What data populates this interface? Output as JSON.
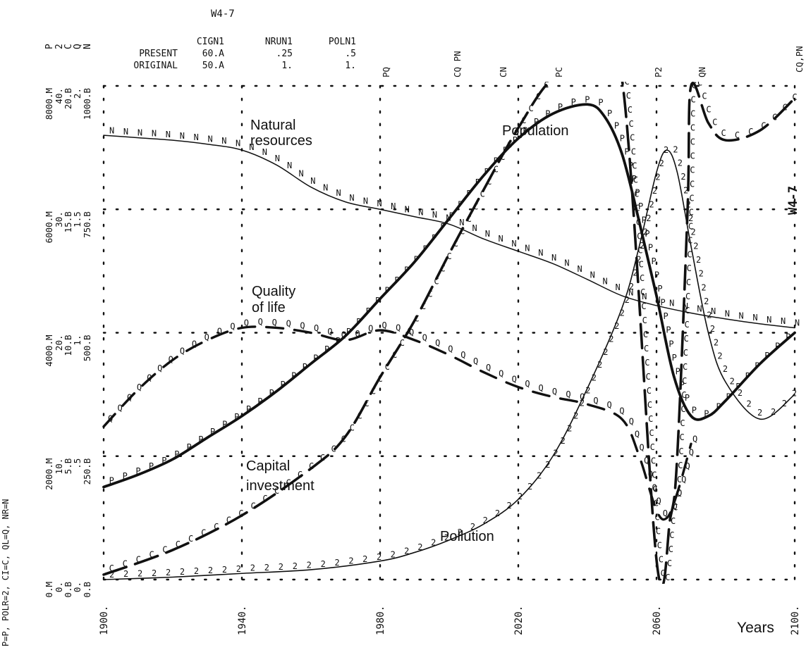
{
  "chart_data": {
    "type": "line",
    "page_code": "W4-7",
    "margin_code": "W4-7",
    "x_unit_label": "Years",
    "x_ticks": [
      "1900.",
      "1940.",
      "1980.",
      "2020.",
      "2060.",
      "2100."
    ],
    "x_range": [
      1900,
      2100
    ],
    "grid": true,
    "parameters": {
      "headers": [
        "CIGN1",
        "NRUN1",
        "POLN1"
      ],
      "rows": [
        {
          "label": "PRESENT",
          "values": [
            "60.A",
            ".25",
            ".5"
          ]
        },
        {
          "label": "ORIGINAL",
          "values": [
            "50.A",
            "1.",
            "1."
          ]
        }
      ]
    },
    "y_scales": [
      {
        "id": "P",
        "ticks": [
          "0.M",
          "2000.M",
          "4000.M",
          "6000.M",
          "8000.M"
        ]
      },
      {
        "id": "2",
        "ticks": [
          "0.",
          "10.",
          "20.",
          "30.",
          "40."
        ]
      },
      {
        "id": "C",
        "ticks": [
          "0.B",
          "5.B",
          "10.B",
          "15.B",
          "20.B"
        ]
      },
      {
        "id": "Q",
        "ticks": [
          "0.",
          ".5",
          "1.",
          "1.5",
          "2."
        ]
      },
      {
        "id": "N",
        "ticks": [
          "0.B",
          "250.B",
          "500.B",
          "750.B",
          "1000.B"
        ]
      }
    ],
    "scale_letters": [
      "P",
      "2",
      "C",
      "Q",
      "N"
    ],
    "left_legend": "P=P, POLR=2, CI=C, QL=Q, NR=N",
    "overlap_notes": [
      "PQ",
      "CQ PN",
      "CN",
      "PC",
      "P2",
      "QN",
      "CQ,PN"
    ],
    "annotations": [
      "Natural resources",
      "Population",
      "Quality of life",
      "Capital investment",
      "Pollution"
    ],
    "series": [
      {
        "name": "Natural resources",
        "symbol": "N",
        "scale": "N",
        "x": [
          1900,
          1910,
          1920,
          1930,
          1940,
          1950,
          1960,
          1970,
          1980,
          1990,
          2000,
          2010,
          2020,
          2030,
          2040,
          2050,
          2060,
          2070,
          2080,
          2090,
          2100
        ],
        "y": [
          900,
          895,
          890,
          882,
          870,
          840,
          795,
          765,
          750,
          735,
          720,
          690,
          665,
          640,
          608,
          575,
          555,
          540,
          528,
          518,
          510
        ]
      },
      {
        "name": "Population",
        "symbol": "P",
        "scale": "P",
        "x": [
          1900,
          1910,
          1920,
          1930,
          1940,
          1950,
          1960,
          1970,
          1980,
          1990,
          2000,
          2010,
          2020,
          2030,
          2040,
          2045,
          2050,
          2055,
          2060,
          2065,
          2070,
          2075,
          2080,
          2090,
          2100
        ],
        "y": [
          1500,
          1700,
          1950,
          2300,
          2650,
          3050,
          3500,
          3950,
          4550,
          5150,
          5850,
          6550,
          7150,
          7550,
          7700,
          7500,
          6900,
          5800,
          4600,
          3300,
          2650,
          2650,
          2900,
          3500,
          4000
        ]
      },
      {
        "name": "Pollution",
        "symbol": "2",
        "scale": "2",
        "x": [
          1900,
          1920,
          1940,
          1960,
          1980,
          1990,
          2000,
          2010,
          2020,
          2030,
          2040,
          2050,
          2055,
          2060,
          2063,
          2066,
          2070,
          2075,
          2080,
          2090,
          2100
        ],
        "y": [
          0,
          0.2,
          0.5,
          0.8,
          1.5,
          2.2,
          3.2,
          4.5,
          6.5,
          10,
          15.5,
          22,
          27,
          33,
          34.8,
          33,
          27,
          20,
          16,
          13,
          15
        ]
      },
      {
        "name": "Capital investment",
        "symbol": "C",
        "scale": "C",
        "x": [
          1900,
          1920,
          1940,
          1960,
          1970,
          1980,
          1990,
          2000,
          2010,
          2020,
          2030,
          2040,
          2050,
          2060,
          2064,
          2066,
          2069,
          2070,
          2075,
          2080,
          2090,
          2100
        ],
        "y": [
          0.2,
          1.2,
          2.6,
          4.5,
          5.8,
          8.2,
          10.5,
          13.2,
          15.8,
          18.3,
          21.5,
          25,
          28,
          0.8,
          2.5,
          5,
          15,
          20,
          18.5,
          17.8,
          18.2,
          19.5
        ]
      },
      {
        "name": "Quality of life",
        "symbol": "Q",
        "scale": "Q",
        "x": [
          1900,
          1910,
          1920,
          1930,
          1940,
          1950,
          1960,
          1970,
          1980,
          1990,
          2000,
          2010,
          2020,
          2030,
          2040,
          2050,
          2055,
          2060,
          2063,
          2066,
          2070
        ],
        "y": [
          0.62,
          0.77,
          0.89,
          0.97,
          1.02,
          1.02,
          1.0,
          0.97,
          1.01,
          0.97,
          0.91,
          0.84,
          0.78,
          0.74,
          0.71,
          0.65,
          0.5,
          0.28,
          0.25,
          0.35,
          0.55
        ]
      }
    ]
  }
}
